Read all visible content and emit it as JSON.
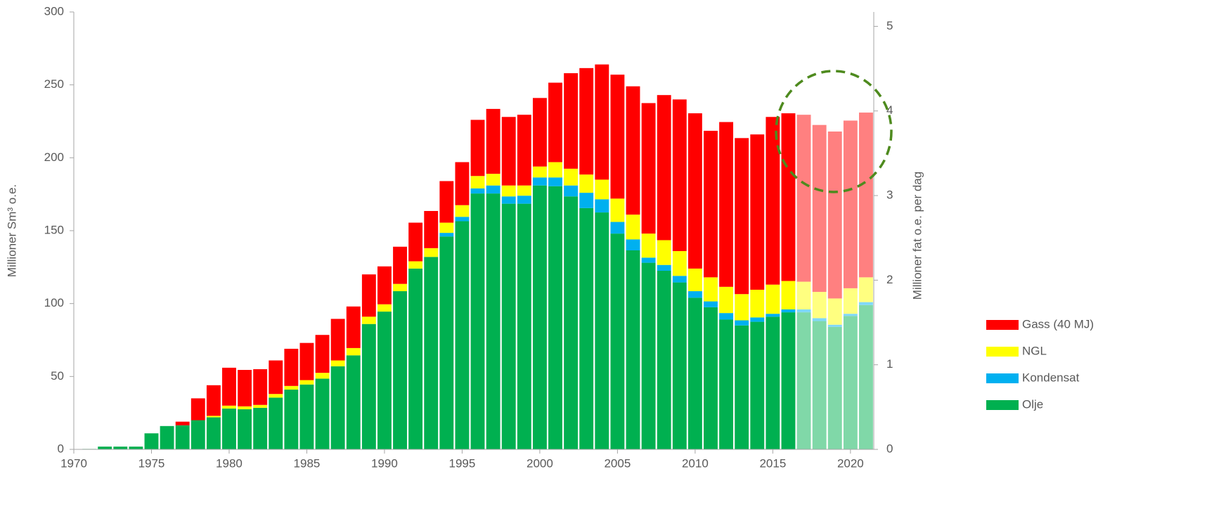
{
  "chart_data": {
    "type": "stacked_bar",
    "y_label": "Millioner  Sm³ o.e.",
    "y2_label": "Millioner fat o.e. per dag",
    "x": [
      1971,
      1972,
      1973,
      1974,
      1975,
      1976,
      1977,
      1978,
      1979,
      1980,
      1981,
      1982,
      1983,
      1984,
      1985,
      1986,
      1987,
      1988,
      1989,
      1990,
      1991,
      1992,
      1993,
      1994,
      1995,
      1996,
      1997,
      1998,
      1999,
      2000,
      2001,
      2002,
      2003,
      2004,
      2005,
      2006,
      2007,
      2008,
      2009,
      2010,
      2011,
      2012,
      2013,
      2014,
      2015,
      2016,
      2017,
      2018,
      2019,
      2020,
      2021
    ],
    "forecast_from": 2017,
    "series": [
      {
        "name": "Olje",
        "color": "#00b050",
        "forecast_color": "#80d8a8",
        "values": [
          0.3,
          1.9,
          1.9,
          1.9,
          11,
          16,
          16.5,
          20,
          22,
          28,
          27.5,
          28.5,
          35.5,
          41,
          44.5,
          48.5,
          57,
          64.5,
          86,
          94.5,
          108.5,
          124,
          132,
          146,
          156.5,
          175.5,
          175.5,
          168.5,
          168.5,
          181,
          180.5,
          173.5,
          165.5,
          162.5,
          148,
          136.5,
          128,
          122.5,
          114.5,
          104,
          97.5,
          89,
          85,
          87.5,
          91,
          94,
          94,
          88,
          84,
          91.5,
          99
        ]
      },
      {
        "name": "Kondensat",
        "color": "#00b0f0",
        "forecast_color": "#80d8f8",
        "values": [
          0,
          0,
          0,
          0,
          0,
          0,
          0,
          0,
          0,
          0,
          0,
          0,
          0,
          0,
          0,
          0,
          0,
          0,
          0,
          0,
          0,
          0,
          0,
          2.5,
          3,
          3.5,
          5.5,
          5,
          5.5,
          5.5,
          6,
          7.5,
          10.5,
          9,
          8,
          7.5,
          3.5,
          4,
          4.5,
          4.5,
          4,
          4.5,
          3.5,
          3,
          2,
          2,
          2,
          2,
          1.5,
          1.5,
          2
        ]
      },
      {
        "name": "NGL",
        "color": "#ffff00",
        "forecast_color": "#ffff80",
        "values": [
          0,
          0,
          0,
          0,
          0,
          0,
          0,
          0,
          1,
          2,
          2,
          2,
          2.5,
          2.5,
          3,
          4,
          4,
          5,
          5,
          5,
          5,
          5,
          6,
          7,
          8,
          8.5,
          8,
          7.5,
          7,
          7.5,
          10.5,
          11.5,
          12.5,
          13.5,
          16,
          17,
          16.5,
          17,
          17,
          15.5,
          16.5,
          18,
          18,
          19,
          20,
          19.5,
          19,
          18,
          18,
          17.5,
          17
        ]
      },
      {
        "name": "Gass (40 MJ)",
        "color": "#ff0000",
        "forecast_color": "#ff8080",
        "values": [
          0,
          0,
          0,
          0,
          0,
          0,
          2.5,
          15,
          21,
          26,
          25,
          24.5,
          23,
          25.5,
          25.5,
          26,
          28.5,
          28.5,
          29,
          26,
          25.5,
          26.5,
          25.5,
          28.5,
          29.5,
          38.5,
          44.5,
          47,
          48.5,
          47,
          54.5,
          65.5,
          73,
          79,
          85,
          88,
          89.5,
          99.5,
          104,
          106.5,
          100.5,
          113,
          107,
          106.5,
          115,
          115,
          114.5,
          114.5,
          114.5,
          115,
          113
        ]
      }
    ],
    "xlim": [
      1970,
      2021.5
    ],
    "xticks": [
      1970,
      1975,
      1980,
      1985,
      1990,
      1995,
      2000,
      2005,
      2010,
      2015,
      2020
    ],
    "ylim": [
      0,
      300
    ],
    "yticks": [
      0,
      50,
      100,
      150,
      200,
      250,
      300
    ],
    "y2lim": [
      0,
      5.17
    ],
    "y2ticks": [
      0,
      1,
      2,
      3,
      4,
      5
    ],
    "legend": "right"
  }
}
